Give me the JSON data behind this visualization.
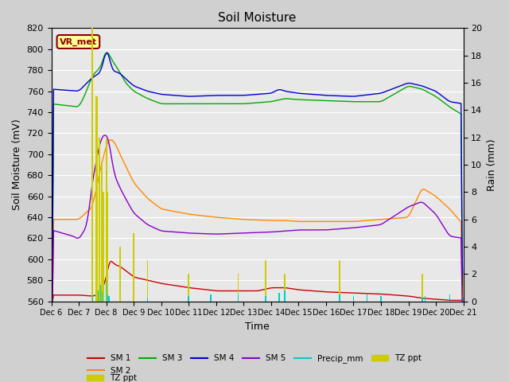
{
  "title": "Soil Moisture",
  "xlabel": "Time",
  "ylabel_left": "Soil Moisture (mV)",
  "ylabel_right": "Rain (mm)",
  "ylim_left": [
    560,
    820
  ],
  "ylim_right": [
    0,
    20
  ],
  "fig_bg": "#d0d0d0",
  "plot_bg": "#e8e8e8",
  "grid_color": "#ffffff",
  "annotation_text": "VR_met",
  "annotation_color": "#8B0000",
  "annotation_bg": "#FFFF99",
  "colors": {
    "SM1": "#cc0000",
    "SM2": "#ff8800",
    "SM3": "#00aa00",
    "SM4": "#0000cc",
    "SM5": "#8800cc",
    "Precip": "#00cccc",
    "TZ": "#cccc00"
  },
  "x_tick_labels": [
    "Dec 6",
    "Dec 7",
    "Dec 8",
    "Dec 9",
    "Dec 10",
    "Dec 11",
    "Dec 12",
    "Dec 13",
    "Dec 14",
    "Dec 15",
    "Dec 16",
    "Dec 17",
    "Dec 18",
    "Dec 19",
    "Dec 20",
    "Dec 21"
  ],
  "n_points": 360,
  "yticks_left": [
    560,
    580,
    600,
    620,
    640,
    660,
    680,
    700,
    720,
    740,
    760,
    780,
    800,
    820
  ],
  "yticks_right": [
    0,
    2,
    4,
    6,
    8,
    10,
    12,
    14,
    16,
    18,
    20
  ]
}
